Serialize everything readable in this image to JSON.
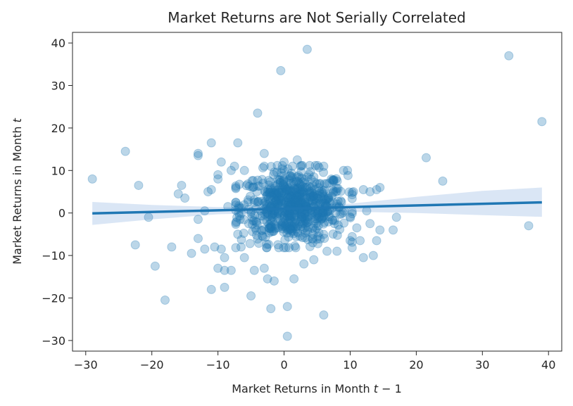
{
  "chart_data": {
    "type": "scatter",
    "title": "Market Returns are Not Serially Correlated",
    "xlabel": "Market Returns in Month ",
    "xlabel_var": "t",
    "xlabel_suffix": " − 1",
    "ylabel": "Market Returns in Month ",
    "ylabel_var": "t",
    "xlim": [
      -32,
      42
    ],
    "ylim": [
      -32.5,
      42.5
    ],
    "x_ticks": [
      -30,
      -20,
      -10,
      0,
      10,
      20,
      30,
      40
    ],
    "y_ticks": [
      -30,
      -20,
      -10,
      0,
      10,
      20,
      30,
      40
    ],
    "x_tick_labels": [
      "−30",
      "−20",
      "−10",
      "0",
      "10",
      "20",
      "30",
      "40"
    ],
    "y_tick_labels": [
      "−30",
      "−20",
      "−10",
      "0",
      "10",
      "20",
      "30",
      "40"
    ],
    "grid": false,
    "colors": {
      "points": "#1f77b4",
      "regression_line": "#1f77b4",
      "confidence_band": "#aec7e8"
    },
    "regression": {
      "x": [
        -29,
        39
      ],
      "y": [
        -0.1,
        2.5
      ]
    },
    "confidence_band": {
      "x": [
        -29,
        -20,
        -10,
        0,
        10,
        20,
        30,
        39
      ],
      "lower": [
        -2.8,
        -1.5,
        -0.3,
        0.1,
        0.3,
        0.0,
        -0.5,
        -0.9
      ],
      "upper": [
        2.6,
        1.9,
        1.4,
        1.5,
        2.2,
        3.8,
        5.2,
        6.0
      ]
    },
    "core_cloud": {
      "cx": 1.5,
      "cy": 1.5,
      "sx": 4.0,
      "sy": 4.2,
      "count": 700
    },
    "points": [
      [
        -29,
        8
      ],
      [
        -24,
        14.5
      ],
      [
        -22,
        6.5
      ],
      [
        -20.5,
        -1
      ],
      [
        -22.5,
        -7.5
      ],
      [
        -19.5,
        -12.5
      ],
      [
        -18,
        -20.5
      ],
      [
        -17,
        -8
      ],
      [
        -15.5,
        6.5
      ],
      [
        -15,
        3.5
      ],
      [
        -16,
        4.5
      ],
      [
        -14,
        -9.5
      ],
      [
        -13,
        13.5
      ],
      [
        -13,
        14
      ],
      [
        -13,
        -1.5
      ],
      [
        -13,
        -6
      ],
      [
        -12,
        -8.5
      ],
      [
        -12,
        0.5
      ],
      [
        -11.5,
        5
      ],
      [
        -11,
        16.5
      ],
      [
        -11,
        5.5
      ],
      [
        -11,
        -18
      ],
      [
        -10.5,
        -8
      ],
      [
        -10,
        8
      ],
      [
        -10,
        9
      ],
      [
        -9.5,
        12
      ],
      [
        -10,
        -13
      ],
      [
        -9.5,
        -8.5
      ],
      [
        -9,
        -17.5
      ],
      [
        -9,
        -10.5
      ],
      [
        -9,
        -13.5
      ],
      [
        -8.5,
        1.5
      ],
      [
        -8,
        10
      ],
      [
        -8,
        -13.5
      ],
      [
        -7.5,
        11
      ],
      [
        -7,
        16.5
      ],
      [
        -7,
        -5
      ],
      [
        -6.5,
        -8
      ],
      [
        -6,
        10
      ],
      [
        -6,
        -10.5
      ],
      [
        -5,
        -19.5
      ],
      [
        -4.5,
        -13.5
      ],
      [
        -4,
        23.5
      ],
      [
        -3,
        14
      ],
      [
        -3,
        11
      ],
      [
        -3,
        -13
      ],
      [
        -2.5,
        -15.5
      ],
      [
        -2,
        -22.5
      ],
      [
        -1.5,
        -16
      ],
      [
        -0.5,
        33.5
      ],
      [
        0,
        12
      ],
      [
        0.5,
        -22
      ],
      [
        0.5,
        -29
      ],
      [
        1.5,
        -15.5
      ],
      [
        2,
        12.5
      ],
      [
        2.5,
        11
      ],
      [
        3,
        -12
      ],
      [
        3.5,
        38.5
      ],
      [
        4.5,
        -11
      ],
      [
        4.5,
        8.5
      ],
      [
        6,
        11
      ],
      [
        6,
        -24
      ],
      [
        6.5,
        -9
      ],
      [
        8,
        -9
      ],
      [
        9,
        10
      ],
      [
        10,
        -6.5
      ],
      [
        10.5,
        5
      ],
      [
        11,
        -3.5
      ],
      [
        11.5,
        -6.5
      ],
      [
        12,
        5.5
      ],
      [
        12,
        -10.5
      ],
      [
        12.5,
        0.5
      ],
      [
        13,
        -2.5
      ],
      [
        13,
        5
      ],
      [
        13.5,
        -10
      ],
      [
        14,
        5.5
      ],
      [
        14.5,
        6
      ],
      [
        14,
        -6.5
      ],
      [
        14.5,
        -4
      ],
      [
        16.5,
        -4
      ],
      [
        17,
        -1
      ],
      [
        21.5,
        13
      ],
      [
        24,
        7.5
      ],
      [
        34,
        37
      ],
      [
        37,
        -3
      ],
      [
        39,
        21.5
      ]
    ]
  }
}
